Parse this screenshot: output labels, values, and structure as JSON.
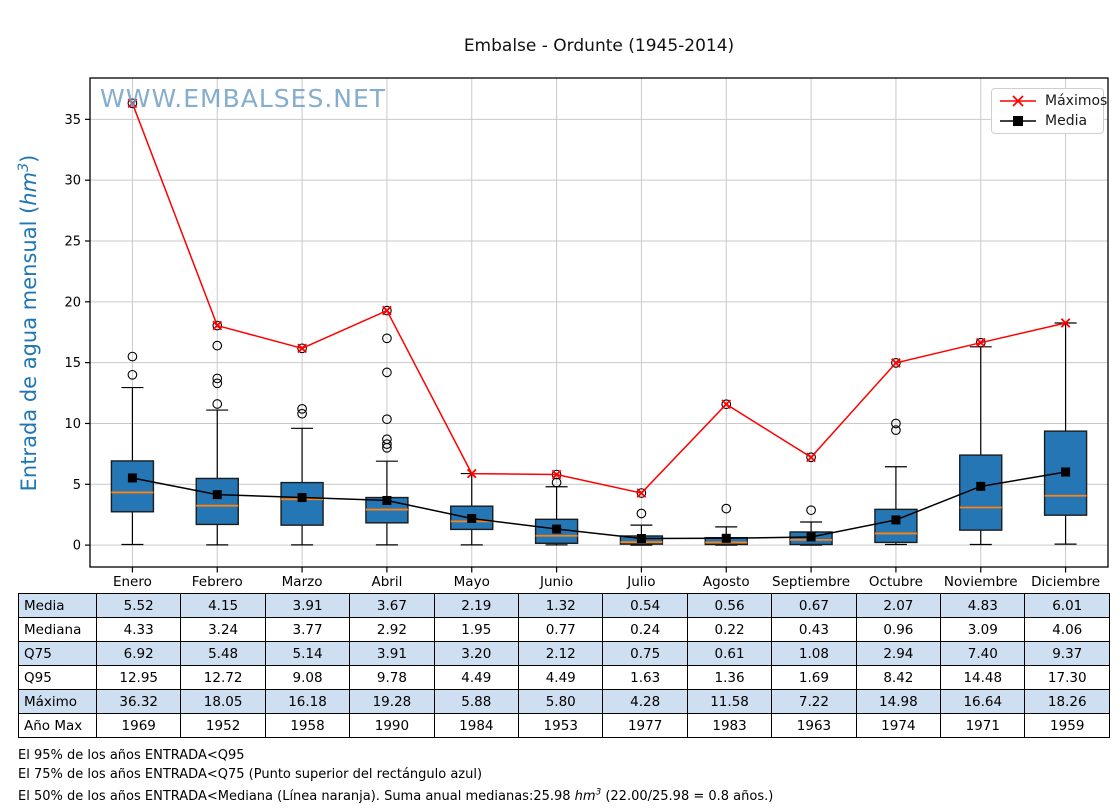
{
  "title": "Embalse - Ordunte (1945-2014)",
  "watermark": "WWW.EMBALSES.NET",
  "colors": {
    "box_fill": "#2576b5",
    "box_edge": "#1c1c1c",
    "median_line": "#ff830e",
    "max_line": "#ff0000",
    "mean_line": "#000000",
    "axis_label_blue": "#1f77b4",
    "watermark_blue": "#6f9fc6",
    "table_shaded_row": "#cfdff2",
    "grid": "#c9c9c9"
  },
  "y_axis_label": {
    "prefix": "Entrada de agua mensual (",
    "italic": "hm",
    "sup": "3",
    "suffix": ")"
  },
  "legend": {
    "items": [
      {
        "label": "Máximos",
        "marker": "x",
        "color": "#ff0000"
      },
      {
        "label": "Media",
        "marker": "square",
        "color": "#000000"
      }
    ]
  },
  "chart_data": {
    "type": "boxplot",
    "categories": [
      "Enero",
      "Febrero",
      "Marzo",
      "Abril",
      "Mayo",
      "Junio",
      "Julio",
      "Agosto",
      "Septiembre",
      "Octubre",
      "Noviembre",
      "Diciembre"
    ],
    "yticks": [
      0,
      5,
      10,
      15,
      20,
      25,
      30,
      35
    ],
    "ylim": [
      -1.8,
      38.4
    ],
    "grid": true,
    "legend_position": "top-right",
    "series": [
      {
        "name": "Máximos",
        "type": "line",
        "marker": "x",
        "color": "#ff0000",
        "values": [
          36.32,
          18.05,
          16.18,
          19.28,
          5.88,
          5.8,
          4.28,
          11.58,
          7.22,
          14.98,
          16.64,
          18.26
        ]
      },
      {
        "name": "Media",
        "type": "line",
        "marker": "square",
        "color": "#000000",
        "values": [
          5.52,
          4.15,
          3.91,
          3.67,
          2.19,
          1.32,
          0.54,
          0.56,
          0.67,
          2.07,
          4.83,
          6.01
        ]
      }
    ],
    "boxplot": {
      "median": [
        4.33,
        3.24,
        3.77,
        2.92,
        1.95,
        0.77,
        0.24,
        0.22,
        0.43,
        0.96,
        3.09,
        4.06
      ],
      "q1": [
        2.74,
        1.7,
        1.64,
        1.83,
        1.29,
        0.15,
        0.08,
        0.05,
        0.05,
        0.22,
        1.23,
        2.46
      ],
      "q3": [
        6.92,
        5.48,
        5.14,
        3.91,
        3.2,
        2.12,
        0.75,
        0.61,
        1.08,
        2.94,
        7.4,
        9.37
      ],
      "whisker_low": [
        0.05,
        0.02,
        0.02,
        0.02,
        0.02,
        0.02,
        0.0,
        0.0,
        0.0,
        0.05,
        0.05,
        0.08
      ],
      "whisker_high": [
        12.95,
        11.1,
        9.6,
        6.9,
        5.88,
        4.8,
        1.64,
        1.5,
        1.9,
        6.44,
        16.3,
        18.26
      ],
      "outliers": [
        [
          14.0,
          15.5
        ],
        [
          11.6,
          13.3,
          13.7,
          16.4
        ],
        [
          10.8,
          11.2
        ],
        [
          8.0,
          8.3,
          8.7,
          10.35,
          14.2,
          17.0
        ],
        [],
        [
          5.15
        ],
        [
          2.6
        ],
        [
          3.0
        ],
        [
          2.87
        ],
        [
          9.45,
          10.0
        ],
        [],
        []
      ],
      "max_is_outlier": [
        true,
        true,
        true,
        true,
        false,
        true,
        true,
        true,
        true,
        true,
        true,
        false
      ]
    }
  },
  "table": {
    "rows": [
      {
        "label": "Media",
        "shaded": true,
        "values": [
          "5.52",
          "4.15",
          "3.91",
          "3.67",
          "2.19",
          "1.32",
          "0.54",
          "0.56",
          "0.67",
          "2.07",
          "4.83",
          "6.01"
        ]
      },
      {
        "label": "Mediana",
        "shaded": false,
        "values": [
          "4.33",
          "3.24",
          "3.77",
          "2.92",
          "1.95",
          "0.77",
          "0.24",
          "0.22",
          "0.43",
          "0.96",
          "3.09",
          "4.06"
        ]
      },
      {
        "label": "Q75",
        "shaded": true,
        "values": [
          "6.92",
          "5.48",
          "5.14",
          "3.91",
          "3.20",
          "2.12",
          "0.75",
          "0.61",
          "1.08",
          "2.94",
          "7.40",
          "9.37"
        ]
      },
      {
        "label": "Q95",
        "shaded": false,
        "values": [
          "12.95",
          "12.72",
          "9.08",
          "9.78",
          "4.49",
          "4.49",
          "1.63",
          "1.36",
          "1.69",
          "8.42",
          "14.48",
          "17.30"
        ]
      },
      {
        "label": "Máximo",
        "shaded": true,
        "values": [
          "36.32",
          "18.05",
          "16.18",
          "19.28",
          "5.88",
          "5.80",
          "4.28",
          "11.58",
          "7.22",
          "14.98",
          "16.64",
          "18.26"
        ]
      },
      {
        "label": "Año Max",
        "shaded": false,
        "values": [
          "1969",
          "1952",
          "1958",
          "1990",
          "1984",
          "1953",
          "1977",
          "1983",
          "1963",
          "1974",
          "1971",
          "1959"
        ]
      }
    ]
  },
  "footer": {
    "line1": "El 95% de los años ENTRADA<Q95",
    "line2": "El 75% de los años ENTRADA<Q75 (Punto superior del rectángulo azul)",
    "line3_prefix": "El 50% de los años ENTRADA<Mediana (Línea naranja). Suma anual medianas:25.98 ",
    "line3_italic": "hm",
    "line3_sup": "3",
    "line3_suffix": " (22.00/25.98 = 0.8 años.)"
  }
}
